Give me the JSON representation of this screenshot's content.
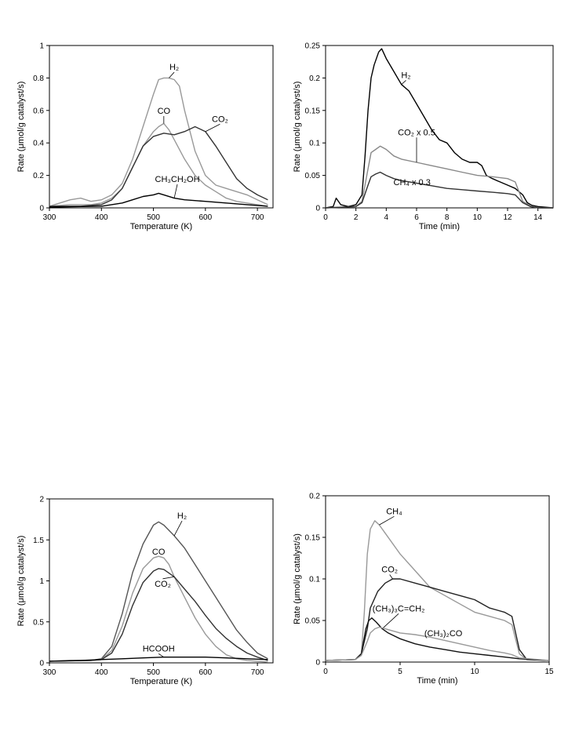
{
  "chart_data": [
    {
      "type": "line",
      "xlabel": "Temperature (K)",
      "ylabel": "Rate (μmol/g catalyst/s)",
      "xlim": [
        300,
        730
      ],
      "ylim": [
        0,
        1
      ],
      "xticks": [
        300,
        400,
        500,
        600,
        700
      ],
      "yticks": [
        0,
        0.2,
        0.4,
        0.6,
        0.8,
        1
      ],
      "tick_labels_x": [
        "300",
        "400",
        "500",
        "600",
        "700"
      ],
      "tick_labels_y": [
        "0",
        "0.2",
        "0.4",
        "0.6",
        "0.8",
        "1"
      ],
      "series": [
        {
          "name": "H2",
          "label": "H₂",
          "color": "#999999",
          "x": [
            300,
            320,
            340,
            360,
            380,
            400,
            420,
            440,
            460,
            480,
            500,
            510,
            520,
            530,
            540,
            550,
            560,
            580,
            600,
            620,
            640,
            660,
            680,
            700,
            720
          ],
          "y": [
            0.01,
            0.03,
            0.05,
            0.06,
            0.04,
            0.05,
            0.08,
            0.15,
            0.3,
            0.5,
            0.7,
            0.79,
            0.8,
            0.8,
            0.79,
            0.75,
            0.6,
            0.35,
            0.2,
            0.14,
            0.12,
            0.1,
            0.08,
            0.05,
            0.02
          ],
          "label_pos": [
            540,
            0.85
          ]
        },
        {
          "name": "CO",
          "label": "CO",
          "color": "#999999",
          "x": [
            300,
            340,
            380,
            400,
            420,
            440,
            460,
            480,
            500,
            510,
            520,
            530,
            540,
            560,
            580,
            600,
            620,
            640,
            660,
            700,
            720
          ],
          "y": [
            0.01,
            0.02,
            0.02,
            0.03,
            0.06,
            0.12,
            0.25,
            0.38,
            0.47,
            0.5,
            0.52,
            0.48,
            0.42,
            0.3,
            0.2,
            0.14,
            0.1,
            0.06,
            0.04,
            0.02,
            0.01
          ],
          "label_pos": [
            520,
            0.58
          ]
        },
        {
          "name": "CO2",
          "label": "CO₂",
          "color": "#333333",
          "x": [
            300,
            360,
            400,
            420,
            440,
            460,
            480,
            500,
            520,
            540,
            560,
            580,
            600,
            620,
            640,
            660,
            680,
            700,
            720
          ],
          "y": [
            0.01,
            0.01,
            0.02,
            0.05,
            0.12,
            0.25,
            0.38,
            0.44,
            0.46,
            0.45,
            0.47,
            0.5,
            0.47,
            0.38,
            0.28,
            0.18,
            0.12,
            0.08,
            0.05
          ],
          "label_pos": [
            628,
            0.53
          ]
        },
        {
          "name": "CH3CH2OH",
          "label": "CH₃CH₂OH",
          "color": "#000000",
          "x": [
            300,
            360,
            400,
            440,
            460,
            480,
            500,
            510,
            520,
            540,
            560,
            600,
            640,
            680,
            720
          ],
          "y": [
            0.005,
            0.008,
            0.01,
            0.03,
            0.05,
            0.07,
            0.08,
            0.09,
            0.08,
            0.06,
            0.05,
            0.04,
            0.03,
            0.02,
            0.01
          ],
          "label_pos": [
            546,
            0.16
          ]
        }
      ]
    },
    {
      "type": "line",
      "xlabel": "Time (min)",
      "ylabel": "Rate (μmol/g catalyst/s)",
      "xlim": [
        0,
        15
      ],
      "ylim": [
        0,
        0.25
      ],
      "xticks": [
        0,
        2,
        4,
        6,
        8,
        10,
        12,
        14
      ],
      "yticks": [
        0,
        0.05,
        0.1,
        0.15,
        0.2,
        0.25
      ],
      "tick_labels_x": [
        "0",
        "2",
        "4",
        "6",
        "8",
        "10",
        "12",
        "14"
      ],
      "tick_labels_y": [
        "0",
        "0.05",
        "0.1",
        "0.15",
        "0.2",
        "0.25"
      ],
      "series": [
        {
          "name": "H2",
          "label": "H₂",
          "color": "#000000",
          "x": [
            0,
            0.5,
            0.7,
            1,
            1.5,
            2,
            2.4,
            2.6,
            2.8,
            3,
            3.2,
            3.5,
            3.7,
            4,
            4.5,
            5,
            5.5,
            6,
            6.5,
            7,
            7.5,
            8,
            8.5,
            9,
            9.5,
            10,
            10.3,
            10.6,
            11,
            11.5,
            12,
            12.5,
            13,
            13.3,
            13.6,
            14,
            15
          ],
          "y": [
            0,
            0.002,
            0.015,
            0.005,
            0.002,
            0.005,
            0.02,
            0.08,
            0.15,
            0.2,
            0.22,
            0.24,
            0.245,
            0.23,
            0.21,
            0.19,
            0.18,
            0.16,
            0.14,
            0.12,
            0.105,
            0.1,
            0.085,
            0.075,
            0.07,
            0.07,
            0.065,
            0.05,
            0.045,
            0.04,
            0.035,
            0.03,
            0.02,
            0.008,
            0.004,
            0.002,
            0
          ],
          "label_pos": [
            5.3,
            0.2
          ]
        },
        {
          "name": "CO2 x 0.5",
          "label": "CO₂ x 0.5",
          "color": "#888888",
          "x": [
            0,
            2,
            2.4,
            2.8,
            3,
            3.3,
            3.6,
            4,
            4.5,
            5,
            6,
            7,
            8,
            9,
            10,
            11,
            12,
            12.5,
            13,
            13.5,
            14,
            15
          ],
          "y": [
            0,
            0.002,
            0.01,
            0.06,
            0.085,
            0.09,
            0.095,
            0.09,
            0.08,
            0.075,
            0.07,
            0.065,
            0.06,
            0.055,
            0.05,
            0.048,
            0.045,
            0.04,
            0.01,
            0.003,
            0,
            0
          ],
          "label_pos": [
            6.0,
            0.112
          ]
        },
        {
          "name": "CH4 x 0.3",
          "label": "CH₄ x 0.3",
          "color": "#333333",
          "x": [
            0,
            2,
            2.4,
            2.8,
            3,
            3.3,
            3.6,
            4,
            4.5,
            5,
            6,
            7,
            8,
            9,
            10,
            11,
            12,
            12.5,
            13,
            13.5,
            14,
            15
          ],
          "y": [
            0,
            0.002,
            0.008,
            0.035,
            0.048,
            0.052,
            0.055,
            0.05,
            0.045,
            0.042,
            0.038,
            0.034,
            0.03,
            0.028,
            0.026,
            0.024,
            0.022,
            0.02,
            0.008,
            0.002,
            0,
            0
          ],
          "label_pos": [
            5.7,
            0.035
          ]
        }
      ]
    },
    {
      "type": "line",
      "xlabel": "Temperature (K)",
      "ylabel": "Rate (μmol/g catalyst/s)",
      "xlim": [
        300,
        730
      ],
      "ylim": [
        0,
        2
      ],
      "xticks": [
        300,
        400,
        500,
        600,
        700
      ],
      "yticks": [
        0,
        0.5,
        1,
        1.5,
        2
      ],
      "tick_labels_x": [
        "300",
        "400",
        "500",
        "600",
        "700"
      ],
      "tick_labels_y": [
        "0",
        "0.5",
        "1",
        "1.5",
        "2"
      ],
      "series": [
        {
          "name": "H2",
          "label": "H₂",
          "color": "#555555",
          "x": [
            300,
            340,
            380,
            400,
            420,
            440,
            460,
            480,
            500,
            510,
            520,
            540,
            560,
            580,
            600,
            620,
            640,
            660,
            680,
            700,
            720
          ],
          "y": [
            0.02,
            0.03,
            0.03,
            0.05,
            0.2,
            0.6,
            1.1,
            1.45,
            1.68,
            1.72,
            1.68,
            1.55,
            1.4,
            1.2,
            1.0,
            0.8,
            0.6,
            0.4,
            0.25,
            0.12,
            0.05
          ],
          "label_pos": [
            555,
            1.76
          ]
        },
        {
          "name": "CO",
          "label": "CO",
          "color": "#999999",
          "x": [
            300,
            380,
            400,
            420,
            440,
            460,
            480,
            500,
            510,
            520,
            530,
            540,
            560,
            580,
            600,
            620,
            640,
            660,
            680,
            720
          ],
          "y": [
            0.02,
            0.03,
            0.04,
            0.15,
            0.45,
            0.85,
            1.15,
            1.28,
            1.3,
            1.28,
            1.2,
            1.05,
            0.8,
            0.55,
            0.35,
            0.2,
            0.1,
            0.05,
            0.03,
            0.01
          ],
          "label_pos": [
            510,
            1.32
          ]
        },
        {
          "name": "CO2",
          "label": "CO₂",
          "color": "#333333",
          "x": [
            300,
            380,
            400,
            420,
            440,
            460,
            480,
            500,
            510,
            520,
            540,
            560,
            580,
            600,
            620,
            640,
            660,
            680,
            700,
            720
          ],
          "y": [
            0.02,
            0.03,
            0.04,
            0.12,
            0.35,
            0.7,
            0.98,
            1.12,
            1.15,
            1.14,
            1.05,
            0.9,
            0.75,
            0.58,
            0.42,
            0.3,
            0.2,
            0.12,
            0.07,
            0.03
          ],
          "label_pos": [
            518,
            0.93
          ]
        },
        {
          "name": "HCOOH",
          "label": "HCOOH",
          "color": "#000000",
          "x": [
            300,
            360,
            400,
            440,
            480,
            520,
            560,
            600,
            640,
            680,
            720
          ],
          "y": [
            0.02,
            0.03,
            0.04,
            0.05,
            0.06,
            0.07,
            0.07,
            0.07,
            0.06,
            0.05,
            0.04
          ],
          "label_pos": [
            510,
            0.14
          ]
        }
      ]
    },
    {
      "type": "line",
      "xlabel": "Time (min)",
      "ylabel": "Rate (μmol/g catalyst/s)",
      "xlim": [
        0,
        15
      ],
      "ylim": [
        0,
        0.2
      ],
      "xticks": [
        0,
        5,
        10,
        15
      ],
      "yticks": [
        0,
        0.05,
        0.1,
        0.15,
        0.2
      ],
      "tick_labels_x": [
        "0",
        "5",
        "10",
        "15"
      ],
      "tick_labels_y": [
        "0",
        "0.05",
        "0.1",
        "0.15",
        "0.2"
      ],
      "series": [
        {
          "name": "CH4",
          "label": "CH₄",
          "color": "#999999",
          "x": [
            0,
            2,
            2.4,
            2.6,
            2.8,
            3,
            3.3,
            3.6,
            4,
            5,
            6,
            7,
            8,
            9,
            10,
            11,
            12,
            12.5,
            13,
            13.5,
            15
          ],
          "y": [
            0.002,
            0.003,
            0.01,
            0.06,
            0.13,
            0.16,
            0.17,
            0.165,
            0.155,
            0.13,
            0.11,
            0.09,
            0.08,
            0.07,
            0.06,
            0.055,
            0.05,
            0.045,
            0.01,
            0.003,
            0.002
          ],
          "label_pos": [
            4.6,
            0.178
          ]
        },
        {
          "name": "CO2",
          "label": "CO₂",
          "color": "#222222",
          "x": [
            0,
            2,
            2.4,
            2.8,
            3,
            3.5,
            4,
            4.5,
            5,
            6,
            7,
            8,
            9,
            10,
            11,
            12,
            12.5,
            13,
            13.5,
            15
          ],
          "y": [
            0.002,
            0.003,
            0.01,
            0.04,
            0.065,
            0.085,
            0.095,
            0.1,
            0.1,
            0.095,
            0.09,
            0.085,
            0.08,
            0.075,
            0.065,
            0.06,
            0.055,
            0.015,
            0.003,
            0.002
          ],
          "label_pos": [
            4.3,
            0.108
          ]
        },
        {
          "name": "(CH3)3C=CH2",
          "label": "(CH₃)₃C=CH₂",
          "color": "#111111",
          "x": [
            0,
            2,
            2.4,
            2.7,
            2.9,
            3.1,
            3.4,
            3.8,
            4.2,
            5,
            6,
            7,
            8,
            9,
            10,
            11,
            12,
            13,
            15
          ],
          "y": [
            0.002,
            0.003,
            0.01,
            0.04,
            0.05,
            0.053,
            0.048,
            0.04,
            0.035,
            0.028,
            0.022,
            0.018,
            0.015,
            0.012,
            0.01,
            0.008,
            0.006,
            0.004,
            0.002
          ],
          "label_pos": [
            4.9,
            0.061
          ]
        },
        {
          "name": "(CH3)2CO",
          "label": "(CH₃)₂CO",
          "color": "#999999",
          "x": [
            0,
            2,
            2.4,
            2.8,
            3,
            3.3,
            3.6,
            4,
            5,
            6,
            7,
            8,
            9,
            10,
            11,
            12,
            12.5,
            13,
            15
          ],
          "y": [
            0.002,
            0.003,
            0.008,
            0.025,
            0.035,
            0.04,
            0.042,
            0.04,
            0.035,
            0.033,
            0.03,
            0.026,
            0.022,
            0.018,
            0.014,
            0.011,
            0.009,
            0.005,
            0.002
          ],
          "label_pos": [
            7.9,
            0.031
          ]
        }
      ]
    }
  ]
}
